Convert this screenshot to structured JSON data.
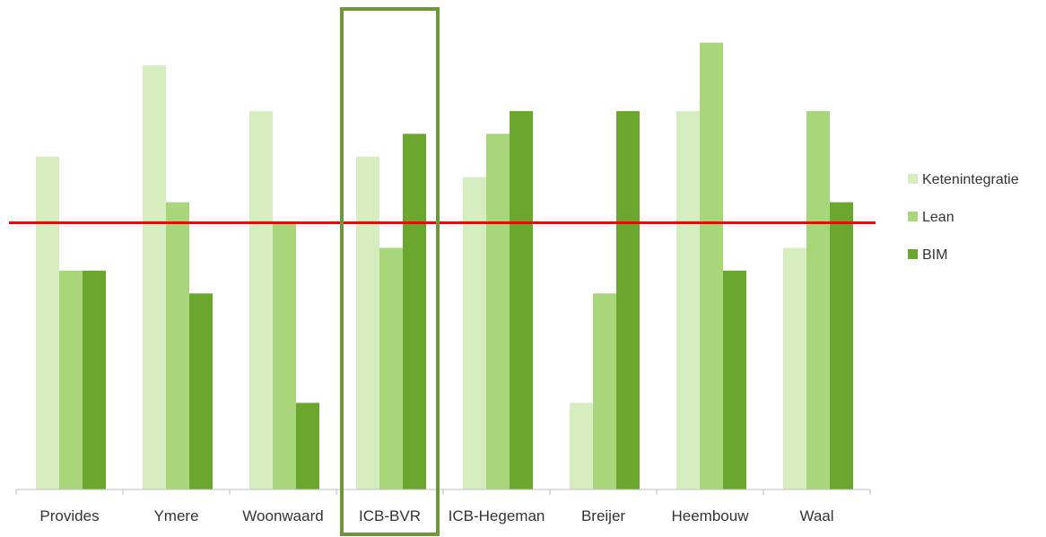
{
  "chart_data": {
    "type": "bar",
    "categories": [
      "Provides",
      "Ymere",
      "Woonwaard",
      "ICB-BVR",
      "ICB-Hegeman",
      "Breijer",
      "Heembouw",
      "Waal"
    ],
    "series": [
      {
        "name": "Ketenintegratie",
        "values": [
          14.6,
          18.6,
          16.6,
          14.6,
          13.7,
          3.8,
          16.6,
          10.6
        ],
        "color": "#d6eebf"
      },
      {
        "name": "Lean",
        "values": [
          9.6,
          12.6,
          11.7,
          10.6,
          15.6,
          8.6,
          19.6,
          16.6
        ],
        "color": "#a9d67a"
      },
      {
        "name": "BIM",
        "values": [
          9.6,
          8.6,
          3.8,
          15.6,
          16.6,
          16.6,
          9.6,
          12.6
        ],
        "color": "#6ba72f"
      }
    ],
    "ylim": [
      0,
      21
    ],
    "reference_line": {
      "value": 11.7,
      "color": "#ff0000"
    },
    "highlighted_category": "ICB-BVR",
    "highlight_color": "#6e963c",
    "grid": false,
    "legend_position": "right"
  }
}
